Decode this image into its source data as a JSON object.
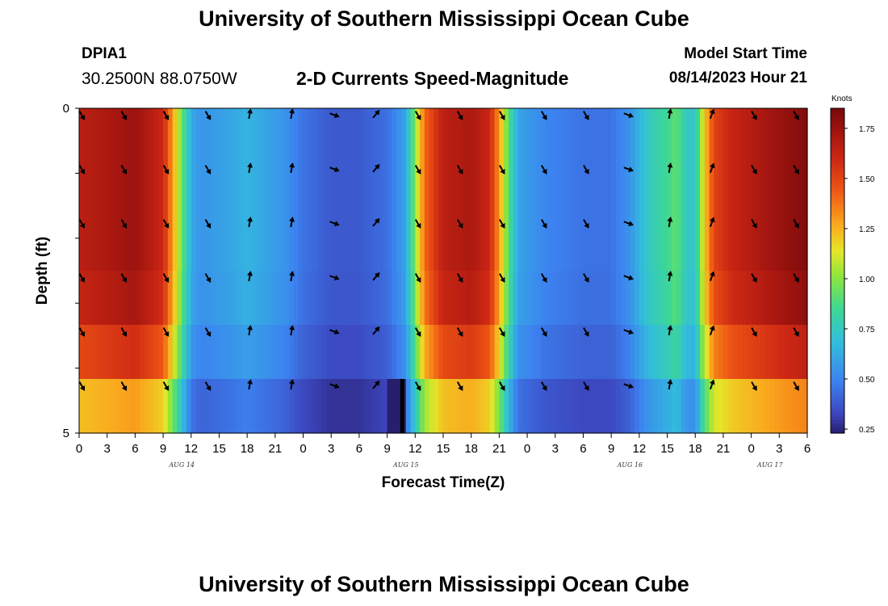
{
  "header": {
    "title": "University of Southern Mississippi Ocean Cube",
    "station": "DPIA1",
    "coordinates": "30.2500N  88.0750W",
    "subtitle": "2-D Currents Speed-Magnitude",
    "model_start_label": "Model Start Time",
    "model_start_value": "08/14/2023 Hour 21"
  },
  "footer": {
    "title": "University of Southern Mississippi Ocean Cube"
  },
  "chart_data": {
    "type": "heatmap",
    "title": "2-D Currents Speed-Magnitude",
    "xlabel": "Forecast Time(Z)",
    "ylabel": "Depth (ft)",
    "x_hours_range": [
      0,
      78
    ],
    "x_ticks": [
      "0",
      "3",
      "6",
      "9",
      "12",
      "15",
      "18",
      "21",
      "0",
      "3",
      "6",
      "9",
      "12",
      "15",
      "18",
      "21",
      "0",
      "3",
      "6",
      "9",
      "12",
      "15",
      "18",
      "21",
      "0",
      "3",
      "6"
    ],
    "day_labels": [
      {
        "label": "AUG 14",
        "hour": 11
      },
      {
        "label": "AUG 15",
        "hour": 35
      },
      {
        "label": "AUG 16",
        "hour": 59
      },
      {
        "label": "AUG 17",
        "hour": 74
      }
    ],
    "y_ticks": [
      {
        "label": "0",
        "depth": 0
      },
      {
        "label": "5",
        "depth": 5
      }
    ],
    "depth_levels": 6,
    "colorbar": {
      "title": "Knots",
      "range": [
        0.23,
        1.85
      ],
      "ticks": [
        "1.75",
        "1.50",
        "1.25",
        "1.00",
        "0.75",
        "0.50",
        "0.25"
      ],
      "tick_values": [
        1.75,
        1.5,
        1.25,
        1.0,
        0.75,
        0.5,
        0.25
      ]
    },
    "speed_profile_knots": [
      [
        0,
        1.65
      ],
      [
        3,
        1.7
      ],
      [
        6,
        1.75
      ],
      [
        9,
        1.6
      ],
      [
        10,
        1.3
      ],
      [
        11,
        0.95
      ],
      [
        12,
        0.62
      ],
      [
        13,
        0.55
      ],
      [
        16,
        0.6
      ],
      [
        18,
        0.65
      ],
      [
        20,
        0.6
      ],
      [
        22,
        0.55
      ],
      [
        24,
        0.45
      ],
      [
        27,
        0.38
      ],
      [
        30,
        0.38
      ],
      [
        33,
        0.44
      ],
      [
        35,
        0.6
      ],
      [
        36,
        1.0
      ],
      [
        37,
        1.4
      ],
      [
        39,
        1.65
      ],
      [
        42,
        1.7
      ],
      [
        44,
        1.6
      ],
      [
        45,
        1.3
      ],
      [
        46,
        0.9
      ],
      [
        47,
        0.6
      ],
      [
        50,
        0.5
      ],
      [
        54,
        0.45
      ],
      [
        57,
        0.45
      ],
      [
        59,
        0.55
      ],
      [
        61,
        0.75
      ],
      [
        63,
        0.85
      ],
      [
        64,
        0.92
      ],
      [
        65,
        0.75
      ],
      [
        66,
        0.72
      ],
      [
        67,
        1.2
      ],
      [
        68,
        1.5
      ],
      [
        70,
        1.62
      ],
      [
        73,
        1.7
      ],
      [
        76,
        1.78
      ],
      [
        78,
        1.82
      ]
    ],
    "depth_factor": [
      1.0,
      1.0,
      1.0,
      0.98,
      0.9,
      0.74
    ],
    "slack_water_window": {
      "hours": [
        33,
        35
      ],
      "depth_level": 5,
      "speed_knots": 0.23
    },
    "vector_columns_hours": [
      0,
      4.5,
      9,
      13.5,
      18,
      22.5,
      27,
      31.5,
      36,
      40.5,
      45,
      49.5,
      54,
      58.5,
      63,
      67.5,
      72,
      76.5
    ],
    "vector_directions_deg": [
      150,
      150,
      150,
      150,
      10,
      10,
      110,
      40,
      150,
      150,
      150,
      150,
      150,
      110,
      10,
      20,
      150,
      150
    ]
  }
}
